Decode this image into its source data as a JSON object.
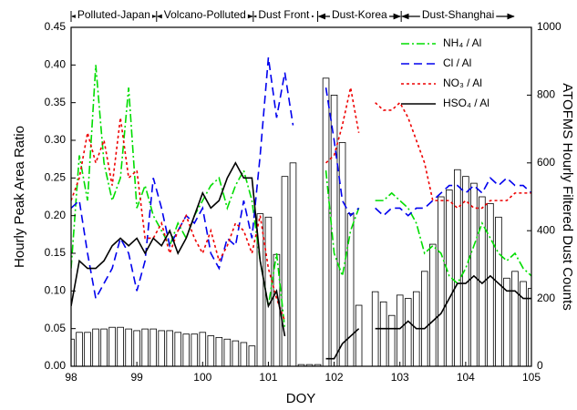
{
  "chart_data": {
    "type": "line",
    "xlabel": "DOY",
    "ylabel": "Hourly Peak Area Ratio",
    "y2label": "ATOFMS Hourly Filtered Dust Counts",
    "xlim": [
      98,
      105
    ],
    "xticks": [
      98,
      99,
      100,
      101,
      102,
      103,
      104,
      105
    ],
    "ylim": [
      0,
      0.45
    ],
    "yticks": [
      {
        "value": 0,
        "label": "0.00"
      },
      {
        "value": 0.05,
        "label": "0.05"
      },
      {
        "value": 0.1,
        "label": "0.10"
      },
      {
        "value": 0.15,
        "label": "0.15"
      },
      {
        "value": 0.2,
        "label": "0.20"
      },
      {
        "value": 0.25,
        "label": "0.25"
      },
      {
        "value": 0.3,
        "label": "0.30"
      },
      {
        "value": 0.35,
        "label": "0.35"
      },
      {
        "value": 0.4,
        "label": "0.40"
      },
      {
        "value": 0.45,
        "label": "0.45"
      }
    ],
    "y2lim": [
      0,
      1000
    ],
    "y2ticks": [
      0,
      200,
      400,
      600,
      800,
      1000
    ],
    "legend": "upper right",
    "regions": [
      {
        "label": "Polluted-Japan",
        "start": 98,
        "end": 99.3
      },
      {
        "label": "Volcano-Polluted",
        "start": 99.3,
        "end": 100.77
      },
      {
        "label": "Dust Front",
        "start": 100.77,
        "end": 101.7
      },
      {
        "label": "Dust-Korea",
        "start": 101.75,
        "end": 103.02
      },
      {
        "label": "Dust-Shanghai",
        "start": 103.02,
        "end": 104.75
      }
    ],
    "x": [
      98,
      98.125,
      98.25,
      98.375,
      98.5,
      98.625,
      98.75,
      98.875,
      99,
      99.125,
      99.25,
      99.375,
      99.5,
      99.625,
      99.75,
      99.875,
      100,
      100.125,
      100.25,
      100.375,
      100.5,
      100.625,
      100.75,
      100.875,
      101,
      101.125,
      101.25,
      101.375,
      101.5,
      101.625,
      101.75,
      101.875,
      102,
      102.125,
      102.25,
      102.375,
      102.5,
      102.625,
      102.75,
      102.875,
      103,
      103.125,
      103.25,
      103.375,
      103.5,
      103.625,
      103.75,
      103.875,
      104,
      104.125,
      104.25,
      104.375,
      104.5,
      104.625,
      104.75,
      104.875,
      105
    ],
    "series": [
      {
        "type": "bar",
        "axis": "y2",
        "color": "#ffffff",
        "edge": "#000000",
        "values": [
          80,
          100,
          100,
          110,
          110,
          115,
          115,
          110,
          105,
          110,
          110,
          105,
          105,
          100,
          95,
          95,
          100,
          90,
          85,
          80,
          75,
          70,
          60,
          450,
          440,
          330,
          560,
          600,
          5,
          5,
          5,
          850,
          800,
          660,
          450,
          180,
          0,
          220,
          190,
          150,
          210,
          200,
          220,
          280,
          360,
          500,
          520,
          580,
          560,
          540,
          500,
          480,
          440,
          260,
          280,
          250,
          230
        ]
      },
      {
        "name": "NH₄ / Al",
        "color": "#00dd00",
        "dash": "dashdot",
        "values": [
          0.13,
          0.28,
          0.22,
          0.4,
          0.27,
          0.22,
          0.25,
          0.37,
          0.21,
          0.24,
          0.2,
          0.18,
          0.16,
          0.19,
          0.17,
          0.2,
          0.22,
          0.24,
          0.25,
          0.21,
          0.24,
          0.26,
          0.22,
          0.14,
          0.08,
          0.15,
          0.05,
          null,
          null,
          null,
          null,
          0.26,
          0.15,
          0.12,
          0.18,
          0.21,
          null,
          0.22,
          0.22,
          0.23,
          0.22,
          0.21,
          0.19,
          0.15,
          0.16,
          0.15,
          0.12,
          0.11,
          0.13,
          0.16,
          0.19,
          0.17,
          0.15,
          0.14,
          0.15,
          0.13,
          0.12
        ]
      },
      {
        "name": "Cl / Al",
        "color": "#0000ee",
        "dash": "dash",
        "values": [
          0.21,
          0.22,
          0.15,
          0.09,
          0.11,
          0.13,
          0.17,
          0.15,
          0.1,
          0.14,
          0.25,
          0.21,
          0.16,
          0.18,
          0.2,
          0.19,
          0.21,
          0.15,
          0.13,
          0.17,
          0.16,
          0.22,
          0.17,
          0.28,
          0.41,
          0.33,
          0.39,
          0.32,
          null,
          null,
          null,
          0.37,
          0.3,
          0.22,
          0.2,
          0.21,
          null,
          0.21,
          0.2,
          0.21,
          0.21,
          0.2,
          0.21,
          0.21,
          0.22,
          0.23,
          0.24,
          0.24,
          0.23,
          0.24,
          0.23,
          0.25,
          0.24,
          0.25,
          0.24,
          0.24,
          0.23
        ]
      },
      {
        "name": "NO₃ / Al",
        "color": "#ee0000",
        "dash": "dot",
        "values": [
          0.22,
          0.25,
          0.31,
          0.27,
          0.3,
          0.24,
          0.33,
          0.25,
          0.26,
          0.17,
          0.17,
          0.19,
          0.15,
          0.18,
          0.2,
          0.17,
          0.15,
          0.18,
          0.14,
          0.16,
          0.19,
          0.18,
          0.15,
          0.2,
          0.13,
          0.09,
          0.06,
          null,
          null,
          null,
          null,
          0.27,
          0.28,
          0.32,
          0.37,
          0.31,
          null,
          0.35,
          0.34,
          0.34,
          0.35,
          0.33,
          0.3,
          0.27,
          0.22,
          0.22,
          0.22,
          0.21,
          0.22,
          0.21,
          0.21,
          0.22,
          0.22,
          0.22,
          0.23,
          0.23,
          0.23
        ]
      },
      {
        "name": "HSO₄ / Al",
        "color": "#000000",
        "dash": "solid",
        "values": [
          0.08,
          0.14,
          0.13,
          0.13,
          0.14,
          0.16,
          0.17,
          0.16,
          0.17,
          0.15,
          0.17,
          0.16,
          0.18,
          0.15,
          0.17,
          0.2,
          0.23,
          0.21,
          0.22,
          0.25,
          0.27,
          0.25,
          0.25,
          0.14,
          0.08,
          0.1,
          0.04,
          null,
          null,
          null,
          null,
          0.01,
          0.01,
          0.03,
          0.04,
          0.05,
          null,
          0.05,
          0.05,
          0.05,
          0.05,
          0.06,
          0.05,
          0.05,
          0.06,
          0.07,
          0.09,
          0.11,
          0.11,
          0.12,
          0.11,
          0.12,
          0.11,
          0.1,
          0.1,
          0.09,
          0.09
        ]
      }
    ]
  }
}
